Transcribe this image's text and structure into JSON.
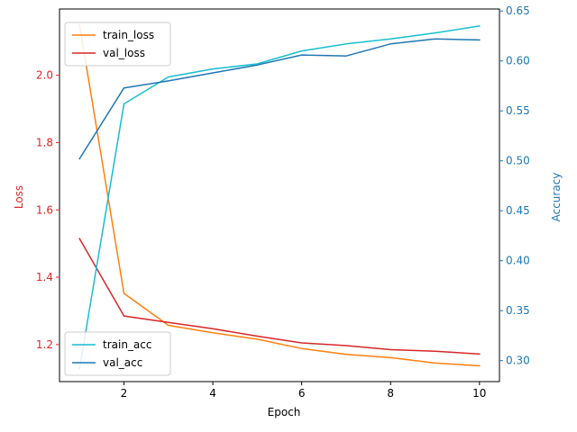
{
  "chart_data": {
    "type": "line",
    "xlabel": "Epoch",
    "ylabel_left": "Loss",
    "ylabel_right": "Accuracy",
    "x": [
      1,
      2,
      3,
      4,
      5,
      6,
      7,
      8,
      9,
      10
    ],
    "xlim": [
      0.55,
      10.45
    ],
    "xticks": [
      2,
      4,
      6,
      8,
      10
    ],
    "ylim_left": [
      1.09,
      2.197
    ],
    "yticks_left": [
      1.2,
      1.4,
      1.6,
      1.8,
      2.0
    ],
    "ylim_right": [
      0.279,
      0.652
    ],
    "yticks_right": [
      0.3,
      0.35,
      0.4,
      0.45,
      0.5,
      0.55,
      0.6,
      0.65
    ],
    "ytick_labels_left": [
      "1.2",
      "1.4",
      "1.6",
      "1.8",
      "2.0"
    ],
    "ytick_labels_right": [
      "0.30",
      "0.35",
      "0.40",
      "0.45",
      "0.50",
      "0.55",
      "0.60",
      "0.65"
    ],
    "xtick_labels": [
      "2",
      "4",
      "6",
      "8",
      "10"
    ],
    "left_axis_color": "#d62728",
    "right_axis_color": "#1f77b4",
    "series_left": [
      {
        "name": "train_loss",
        "color": "#ff7f0e",
        "values": [
          2.15,
          1.352,
          1.257,
          1.235,
          1.216,
          1.188,
          1.171,
          1.161,
          1.145,
          1.137
        ]
      },
      {
        "name": "val_loss",
        "color": "#d62728",
        "values": [
          1.515,
          1.285,
          1.266,
          1.247,
          1.225,
          1.205,
          1.197,
          1.185,
          1.18,
          1.172
        ]
      }
    ],
    "series_right": [
      {
        "name": "train_acc",
        "color": "#17becf",
        "values": [
          0.292,
          0.557,
          0.584,
          0.592,
          0.597,
          0.61,
          0.617,
          0.622,
          0.628,
          0.635
        ]
      },
      {
        "name": "val_acc",
        "color": "#1f77b4",
        "values": [
          0.502,
          0.573,
          0.58,
          0.588,
          0.596,
          0.606,
          0.605,
          0.617,
          0.622,
          0.621
        ]
      }
    ],
    "legend_left_placement": "top-left",
    "legend_right_placement": "bottom-left",
    "grid": false
  }
}
